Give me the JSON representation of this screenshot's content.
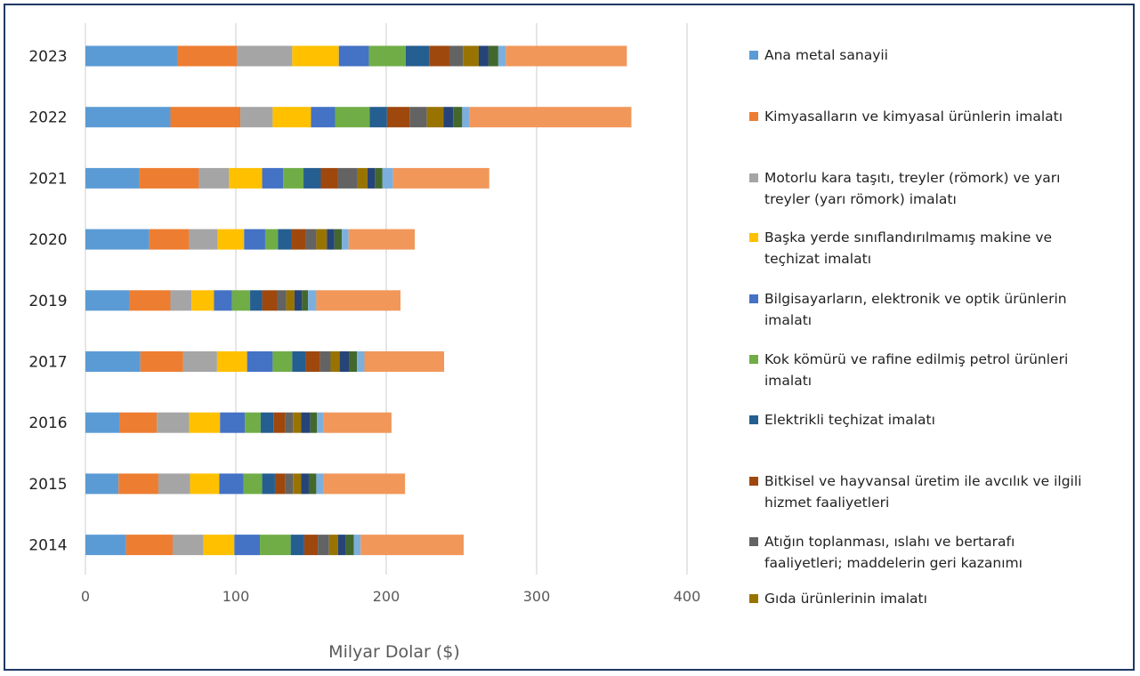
{
  "chart_data": {
    "type": "bar",
    "orientation": "horizontal",
    "stacked": true,
    "title": "",
    "xlabel": "Milyar Dolar ($)",
    "ylabel": "",
    "xlim": [
      0,
      400
    ],
    "xticks": [
      0,
      100,
      200,
      300,
      400
    ],
    "grid": true,
    "legend_position": "right",
    "categories": [
      "2023",
      "2022",
      "2021",
      "2020",
      "2019",
      "2017",
      "2016",
      "2015",
      "2014"
    ],
    "series": [
      {
        "name": "Ana metal sanayii",
        "color": "#5b9bd5",
        "values": [
          61.5,
          56.5,
          36,
          42.5,
          29,
          36.5,
          22.5,
          22,
          27
        ]
      },
      {
        "name": "Kimyasalların ve kimyasal ürünlerin imalatı",
        "color": "#ed7d31",
        "values": [
          39.5,
          46.5,
          39.5,
          26.5,
          27.5,
          28.5,
          25,
          26.5,
          31
        ]
      },
      {
        "name": "Motorlu kara taşıtı, treyler (römork) ve yarı treyler (yarı römork) imalatı",
        "color": "#a5a5a5",
        "values": [
          36.5,
          21.5,
          20,
          19,
          14,
          22.5,
          21.5,
          21,
          20.5
        ]
      },
      {
        "name": "Başka yerde sınıflandırılmamış makine ve teçhizat imalatı",
        "color": "#ffc000",
        "values": [
          31,
          25.5,
          22,
          17.5,
          15,
          20,
          20.5,
          19.5,
          20.5
        ]
      },
      {
        "name": "Bilgisayarların, elektronik ve optik ürünlerin imalatı",
        "color": "#4472c4",
        "values": [
          20,
          16,
          14,
          14,
          12,
          17,
          16.5,
          16,
          17
        ]
      },
      {
        "name": "Kok kömürü ve rafine edilmiş petrol ürünleri imalatı",
        "color": "#70ad47",
        "values": [
          24.5,
          23,
          13.5,
          8.5,
          12,
          13,
          10.5,
          12.5,
          20.5
        ]
      },
      {
        "name": "Elektrikli teçhizat imalatı",
        "color": "#255e91",
        "values": [
          15.5,
          11.5,
          11.5,
          9,
          8,
          9,
          8.5,
          8.5,
          9
        ]
      },
      {
        "name": "Bitkisel ve hayvansal üretim ile avcılık ve ilgili hizmet faaliyetleri",
        "color": "#9e480e",
        "values": [
          13.5,
          15,
          11.5,
          9.5,
          10,
          9.5,
          8,
          7,
          9
        ]
      },
      {
        "name": "Atığın toplanması, ıslahı ve bertarafı faaliyetleri; maddelerin geri kazanımı",
        "color": "#636363",
        "values": [
          9,
          11.5,
          13,
          7,
          6,
          7,
          5,
          5,
          7.5
        ]
      },
      {
        "name": "Gıda ürünlerinin imalatı",
        "color": "#997300",
        "values": [
          10.5,
          11,
          6.5,
          7,
          5.5,
          6,
          5.5,
          5.5,
          6
        ]
      },
      {
        "name": "",
        "color": "#264478",
        "values": [
          6.5,
          6.5,
          5,
          5,
          5,
          6.5,
          6,
          5,
          5
        ]
      },
      {
        "name": "",
        "color": "#43682b",
        "values": [
          6.5,
          6,
          5,
          5,
          4,
          5,
          4.5,
          5,
          5.5
        ]
      },
      {
        "name": "",
        "color": "#7cafdd",
        "values": [
          5,
          5,
          7,
          4.5,
          5.5,
          5,
          4.5,
          4.5,
          4.5
        ]
      },
      {
        "name": "",
        "color": "#f1975a",
        "values": [
          80.5,
          107.5,
          64,
          44,
          56,
          53,
          45,
          54.5,
          68.5
        ]
      }
    ]
  }
}
